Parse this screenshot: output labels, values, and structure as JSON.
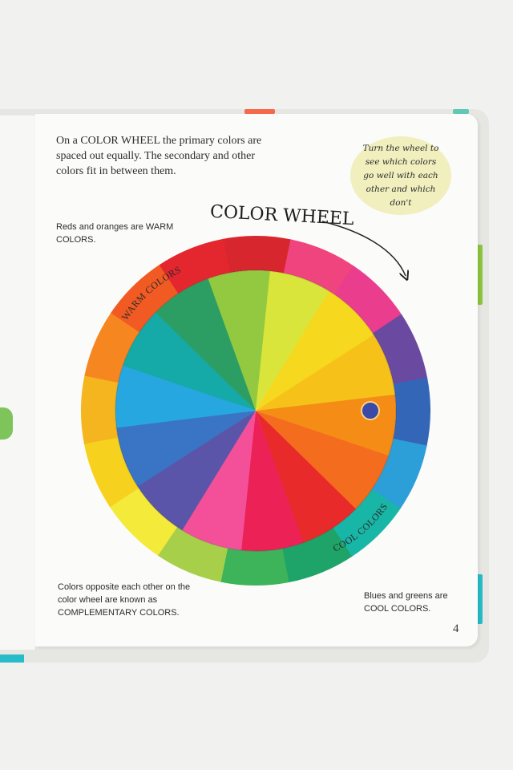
{
  "page": {
    "intro": "On a COLOR WHEEL the primary colors are spaced out equally. The secondary and other colors fit in between them.",
    "hint": "Turn the wheel to see which colors go well with each other and which don't",
    "wheel_title": "COLOR WHEEL",
    "warm_note": "Reds and oranges are WARM COLORS.",
    "complementary_note": "Colors opposite each other on the color wheel are known as COMPLEMENTARY COLORS.",
    "cool_note": "Blues and greens are COOL COLORS.",
    "warm_label": "WARM COLORS",
    "cool_label": "COOL COLORS",
    "page_number": "4"
  },
  "colors": {
    "outer_ring": [
      "#d8262f",
      "#f0447f",
      "#ea3d8e",
      "#6a4aa0",
      "#3466b8",
      "#2d9fd8",
      "#18b6a6",
      "#1ea368",
      "#3db35a",
      "#a8cf4a",
      "#f4ea3a",
      "#f6d21e",
      "#f4b51f",
      "#f6861f",
      "#f15a22",
      "#e4262e"
    ],
    "inner_disc": [
      "#f48c16",
      "#f46c1d",
      "#e92a2a",
      "#ec2257",
      "#f4509a",
      "#5a55a8",
      "#3a74c4",
      "#27a7df",
      "#15a9a7",
      "#2d9e63",
      "#93c940",
      "#d9e53a",
      "#f6d81f",
      "#f6c21a"
    ],
    "hint_bg": "#f0efbd",
    "warm_band": "#f06a1f",
    "cool_band": "#29b3e0"
  }
}
